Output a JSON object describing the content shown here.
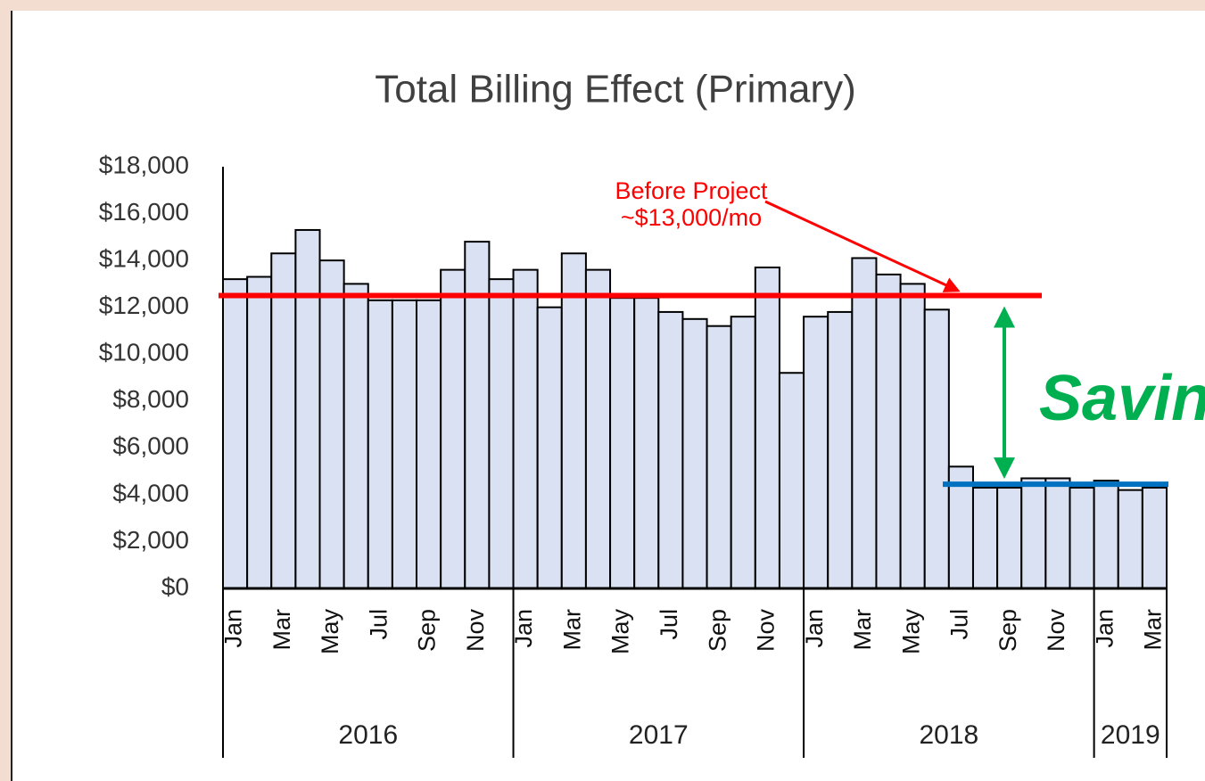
{
  "chart_data": {
    "type": "bar",
    "title": "Total Billing Effect (Primary)",
    "categories": [
      "Jan",
      null,
      "Mar",
      null,
      "May",
      null,
      "Jul",
      null,
      "Sep",
      null,
      "Nov",
      null,
      "Jan",
      null,
      "Mar",
      null,
      "May",
      null,
      "Jul",
      null,
      "Sep",
      null,
      "Nov",
      null,
      "Jan",
      null,
      "Mar",
      null,
      "May",
      null,
      "Jul",
      null,
      "Sep",
      null,
      "Nov",
      null,
      "Jan",
      null,
      "Mar"
    ],
    "years": [
      "2016",
      "2017",
      "2018",
      "2019"
    ],
    "values": [
      13200,
      13300,
      14300,
      15300,
      14000,
      13000,
      12300,
      12300,
      12300,
      13600,
      14800,
      13200,
      13600,
      12000,
      14300,
      13600,
      12400,
      12400,
      11800,
      11500,
      11200,
      11600,
      13700,
      9200,
      11600,
      11800,
      14100,
      13400,
      13000,
      11900,
      5200,
      4300,
      4300,
      4700,
      4700,
      4300,
      4600,
      4200,
      4300
    ],
    "color": "#d9e1f2",
    "ylim": [
      0,
      18000
    ],
    "yticks": [
      {
        "value": 0,
        "label": "$0"
      },
      {
        "value": 2000,
        "label": "$2,000"
      },
      {
        "value": 4000,
        "label": "$4,000"
      },
      {
        "value": 6000,
        "label": "$6,000"
      },
      {
        "value": 8000,
        "label": "$8,000"
      },
      {
        "value": 10000,
        "label": "$10,000"
      },
      {
        "value": 12000,
        "label": "$12,000"
      },
      {
        "value": 14000,
        "label": "$14,000"
      },
      {
        "value": 16000,
        "label": "$16,000"
      },
      {
        "value": 18000,
        "label": "$18,000"
      }
    ],
    "reference_lines": [
      {
        "value": 12500,
        "color": "#ff0000"
      },
      {
        "value": 4450,
        "color": "#0070c0"
      }
    ],
    "annotations": [
      "Before Project",
      "~$13,000/mo",
      "Savings"
    ]
  }
}
